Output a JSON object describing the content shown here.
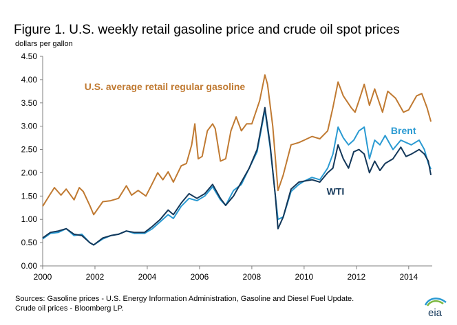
{
  "title": "Figure 1.  U.S. weekly retail gasoline price and crude oil spot prices",
  "unit_label": "dollars per gallon",
  "source_line1": "Sources:  Gasoline prices - U.S. Energy Information Administration, Gasoline and Diesel Fuel Update.",
  "source_line2": "Crude oil prices - Bloomberg LP.",
  "logo_text": "eia",
  "colors": {
    "gasoline": "#C07A32",
    "brent": "#2A9AD2",
    "wti": "#14385A",
    "axis": "#7F7F7F"
  },
  "chart_data": {
    "type": "line",
    "ylim": [
      0,
      4.5
    ],
    "xlim": [
      2000,
      2014.9
    ],
    "yticks": [
      "0.00",
      "0.50",
      "1.00",
      "1.50",
      "2.00",
      "2.50",
      "3.00",
      "3.50",
      "4.00",
      "4.50"
    ],
    "xticks": [
      "2000",
      "2002",
      "2004",
      "2006",
      "2008",
      "2010",
      "2012",
      "2014"
    ],
    "grid": false,
    "annotations": [
      {
        "text": "U.S. average retail regular gasoline",
        "series": "gasoline"
      },
      {
        "text": "Brent",
        "series": "brent"
      },
      {
        "text": "WTI",
        "series": "wti"
      }
    ],
    "series": [
      {
        "name": "U.S. average retail regular gasoline",
        "key": "gasoline",
        "x": [
          2000.0,
          2000.3,
          2000.45,
          2000.7,
          2000.9,
          2001.2,
          2001.4,
          2001.55,
          2001.8,
          2001.95,
          2002.3,
          2002.6,
          2002.9,
          2003.2,
          2003.4,
          2003.65,
          2003.95,
          2004.15,
          2004.4,
          2004.6,
          2004.8,
          2005.0,
          2005.3,
          2005.5,
          2005.7,
          2005.82,
          2005.95,
          2006.1,
          2006.3,
          2006.5,
          2006.6,
          2006.8,
          2007.0,
          2007.2,
          2007.4,
          2007.6,
          2007.8,
          2008.0,
          2008.3,
          2008.5,
          2008.6,
          2008.8,
          2009.0,
          2009.2,
          2009.5,
          2009.8,
          2010.0,
          2010.3,
          2010.6,
          2010.9,
          2011.1,
          2011.3,
          2011.5,
          2011.8,
          2011.95,
          2012.1,
          2012.3,
          2012.5,
          2012.7,
          2012.85,
          2013.0,
          2013.2,
          2013.5,
          2013.8,
          2014.0,
          2014.3,
          2014.5,
          2014.7,
          2014.85
        ],
        "y": [
          1.28,
          1.55,
          1.68,
          1.52,
          1.65,
          1.42,
          1.68,
          1.6,
          1.3,
          1.1,
          1.38,
          1.4,
          1.45,
          1.72,
          1.52,
          1.62,
          1.5,
          1.72,
          2.0,
          1.85,
          2.02,
          1.8,
          2.15,
          2.2,
          2.6,
          3.05,
          2.3,
          2.35,
          2.9,
          3.05,
          2.95,
          2.25,
          2.3,
          2.9,
          3.2,
          2.9,
          3.05,
          3.05,
          3.55,
          4.1,
          3.9,
          3.0,
          1.62,
          1.95,
          2.6,
          2.65,
          2.7,
          2.78,
          2.73,
          2.9,
          3.4,
          3.95,
          3.65,
          3.4,
          3.3,
          3.55,
          3.9,
          3.45,
          3.8,
          3.55,
          3.3,
          3.75,
          3.6,
          3.3,
          3.35,
          3.65,
          3.7,
          3.4,
          3.1
        ]
      },
      {
        "name": "Brent",
        "key": "brent",
        "x": [
          2000.0,
          2000.3,
          2000.6,
          2000.9,
          2001.2,
          2001.5,
          2001.8,
          2001.95,
          2002.3,
          2002.6,
          2002.9,
          2003.2,
          2003.5,
          2003.9,
          2004.2,
          2004.5,
          2004.8,
          2005.0,
          2005.3,
          2005.6,
          2005.9,
          2006.2,
          2006.5,
          2006.8,
          2007.0,
          2007.3,
          2007.6,
          2007.9,
          2008.2,
          2008.5,
          2008.7,
          2008.9,
          2009.0,
          2009.2,
          2009.5,
          2009.8,
          2010.0,
          2010.3,
          2010.6,
          2010.9,
          2011.1,
          2011.3,
          2011.5,
          2011.7,
          2011.9,
          2012.1,
          2012.3,
          2012.5,
          2012.7,
          2012.9,
          2013.1,
          2013.4,
          2013.7,
          2013.9,
          2014.1,
          2014.4,
          2014.6,
          2014.75,
          2014.85
        ],
        "y": [
          0.58,
          0.7,
          0.72,
          0.8,
          0.65,
          0.68,
          0.5,
          0.45,
          0.58,
          0.65,
          0.68,
          0.75,
          0.7,
          0.7,
          0.8,
          0.95,
          1.1,
          1.02,
          1.28,
          1.45,
          1.4,
          1.5,
          1.7,
          1.42,
          1.3,
          1.62,
          1.75,
          2.1,
          2.45,
          3.35,
          2.55,
          1.5,
          1.0,
          1.05,
          1.6,
          1.75,
          1.82,
          1.9,
          1.85,
          2.1,
          2.4,
          2.98,
          2.75,
          2.6,
          2.7,
          2.9,
          2.98,
          2.3,
          2.7,
          2.6,
          2.8,
          2.5,
          2.7,
          2.65,
          2.6,
          2.7,
          2.5,
          2.2,
          2.08
        ]
      },
      {
        "name": "WTI",
        "key": "wti",
        "x": [
          2000.0,
          2000.3,
          2000.6,
          2000.9,
          2001.2,
          2001.5,
          2001.8,
          2001.95,
          2002.3,
          2002.6,
          2002.9,
          2003.2,
          2003.5,
          2003.9,
          2004.2,
          2004.5,
          2004.8,
          2005.0,
          2005.3,
          2005.6,
          2005.9,
          2006.2,
          2006.5,
          2006.8,
          2007.0,
          2007.3,
          2007.6,
          2007.9,
          2008.2,
          2008.5,
          2008.7,
          2008.9,
          2009.0,
          2009.2,
          2009.5,
          2009.8,
          2010.0,
          2010.3,
          2010.6,
          2010.9,
          2011.1,
          2011.3,
          2011.5,
          2011.7,
          2011.9,
          2012.1,
          2012.3,
          2012.5,
          2012.7,
          2012.9,
          2013.1,
          2013.4,
          2013.7,
          2013.9,
          2014.1,
          2014.4,
          2014.6,
          2014.75,
          2014.85
        ],
        "y": [
          0.6,
          0.72,
          0.75,
          0.8,
          0.68,
          0.65,
          0.5,
          0.45,
          0.6,
          0.65,
          0.68,
          0.75,
          0.72,
          0.72,
          0.85,
          1.0,
          1.2,
          1.1,
          1.35,
          1.55,
          1.45,
          1.55,
          1.75,
          1.45,
          1.3,
          1.5,
          1.8,
          2.1,
          2.5,
          3.4,
          2.6,
          1.5,
          0.8,
          1.05,
          1.65,
          1.8,
          1.82,
          1.85,
          1.8,
          2.0,
          2.1,
          2.6,
          2.3,
          2.1,
          2.45,
          2.5,
          2.4,
          2.0,
          2.25,
          2.05,
          2.2,
          2.3,
          2.55,
          2.35,
          2.4,
          2.5,
          2.4,
          2.25,
          1.95
        ]
      }
    ]
  }
}
